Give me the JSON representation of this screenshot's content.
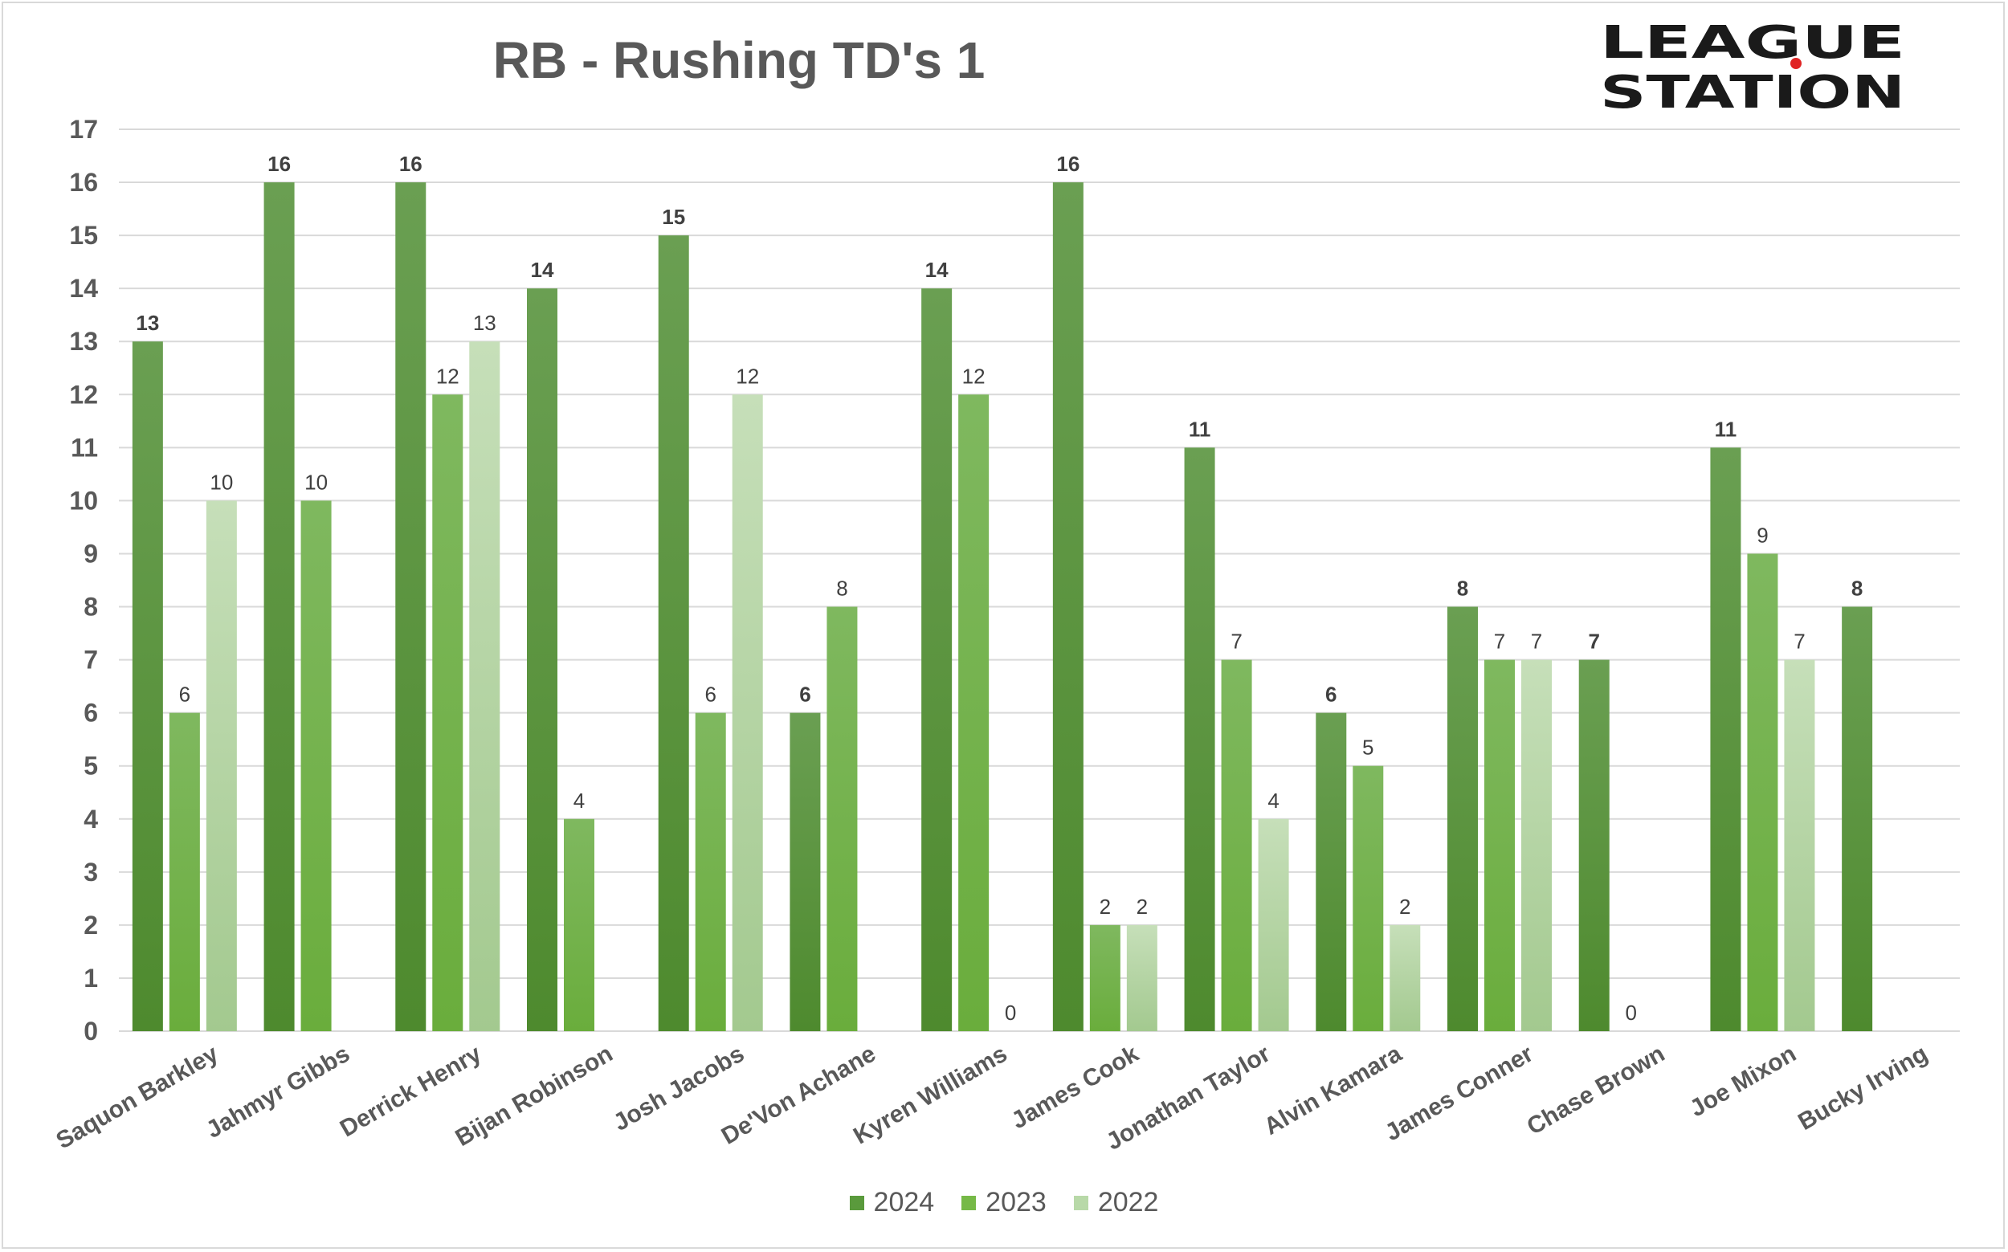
{
  "title": "RB - Rushing TD's 1",
  "logo": {
    "line1": "LEAGUE",
    "line2": "STATION"
  },
  "colors": {
    "2024": "#5a9a3c",
    "2023": "#76b947",
    "2022": "#b8d9a8",
    "grid": "#d9d9d9",
    "axis_text": "#595959",
    "label_text": "#404040",
    "logo_dot": "#e02424"
  },
  "legend": [
    {
      "label": "2024",
      "color": "#5a9a3c"
    },
    {
      "label": "2023",
      "color": "#76b947"
    },
    {
      "label": "2022",
      "color": "#b8d9a8"
    }
  ],
  "chart_data": {
    "type": "bar",
    "title": "RB - Rushing TD's 1",
    "xlabel": "",
    "ylabel": "",
    "ylim": [
      0,
      17
    ],
    "yticks": [
      0,
      1,
      2,
      3,
      4,
      5,
      6,
      7,
      8,
      9,
      10,
      11,
      12,
      13,
      14,
      15,
      16,
      17
    ],
    "grid": true,
    "legend_position": "bottom",
    "categories": [
      "Saquon Barkley",
      "Jahmyr Gibbs",
      "Derrick Henry",
      "Bijan Robinson",
      "Josh Jacobs",
      "De'Von Achane",
      "Kyren Williams",
      "James Cook",
      "Jonathan Taylor",
      "Alvin Kamara",
      "James Conner",
      "Chase Brown",
      "Joe Mixon",
      "Bucky Irving"
    ],
    "series": [
      {
        "name": "2024",
        "values": [
          13,
          16,
          16,
          14,
          15,
          6,
          14,
          16,
          11,
          6,
          8,
          7,
          11,
          8
        ]
      },
      {
        "name": "2023",
        "values": [
          6,
          10,
          12,
          4,
          6,
          8,
          12,
          2,
          7,
          5,
          7,
          0,
          9,
          null
        ]
      },
      {
        "name": "2022",
        "values": [
          10,
          null,
          13,
          null,
          12,
          null,
          0,
          2,
          4,
          2,
          7,
          null,
          7,
          null
        ]
      }
    ]
  }
}
